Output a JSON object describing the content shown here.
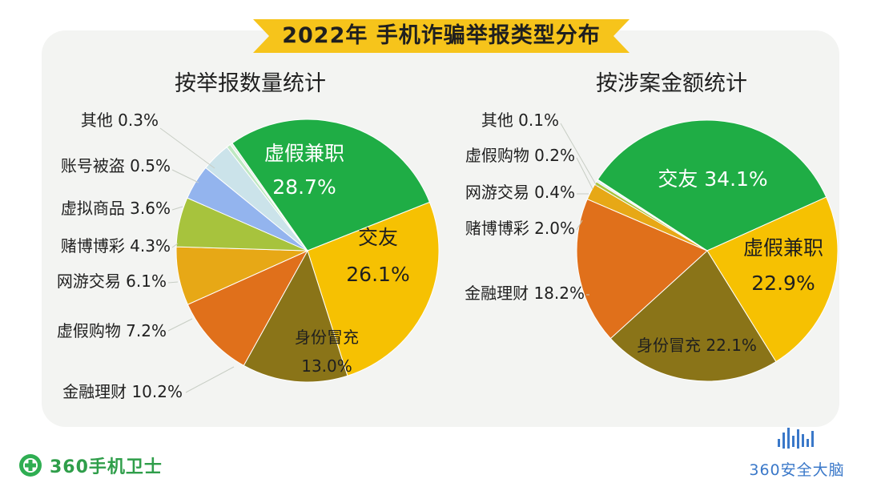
{
  "title": "2022年 手机诈骗举报类型分布",
  "colors": {
    "banner": "#f6c41b",
    "panel": "#f3f4f2",
    "green": "#1fad45",
    "yellow": "#f6c102",
    "olive": "#8a7418",
    "orange": "#e0701b",
    "gold": "#e7a816",
    "lime": "#a7c33d",
    "lightblue": "#93b4ee",
    "pale": "#cbe3ea",
    "mint": "#bfe8c2"
  },
  "chart_data": [
    {
      "type": "pie",
      "title": "按举报数量统计",
      "slices": [
        {
          "label": "虚假兼职",
          "value": 28.7,
          "color": "#1fad45"
        },
        {
          "label": "交友",
          "value": 26.1,
          "color": "#f6c102"
        },
        {
          "label": "身份冒充",
          "value": 13.0,
          "color": "#8a7418"
        },
        {
          "label": "金融理财",
          "value": 10.2,
          "color": "#e0701b"
        },
        {
          "label": "虚假购物",
          "value": 7.2,
          "color": "#e7a816"
        },
        {
          "label": "网游交易",
          "value": 6.1,
          "color": "#a7c33d"
        },
        {
          "label": "赌博博彩",
          "value": 4.3,
          "color": "#93b4ee"
        },
        {
          "label": "虚拟商品",
          "value": 3.6,
          "color": "#cbe3ea"
        },
        {
          "label": "账号被盗",
          "value": 0.5,
          "color": "#bfe8c2"
        },
        {
          "label": "其他",
          "value": 0.3,
          "color": "#e8efe6"
        }
      ],
      "labels": {
        "inside": [
          {
            "name": "虚假兼职",
            "pct": "28.7%"
          },
          {
            "name": "交友",
            "pct": "26.1%"
          },
          {
            "name": "身份冒充",
            "pct": "13.0%"
          }
        ],
        "outside": [
          "其他 0.3%",
          "账号被盗 0.5%",
          "虚拟商品 3.6%",
          "赌博博彩 4.3%",
          "网游交易 6.1%",
          "虚假购物 7.2%",
          "金融理财 10.2%"
        ]
      }
    },
    {
      "type": "pie",
      "title": "按涉案金额统计",
      "slices": [
        {
          "label": "交友",
          "value": 34.1,
          "color": "#1fad45"
        },
        {
          "label": "虚假兼职",
          "value": 22.9,
          "color": "#f6c102"
        },
        {
          "label": "身份冒充",
          "value": 22.1,
          "color": "#8a7418"
        },
        {
          "label": "金融理财",
          "value": 18.2,
          "color": "#e0701b"
        },
        {
          "label": "赌博博彩",
          "value": 2.0,
          "color": "#e7a816"
        },
        {
          "label": "网游交易",
          "value": 0.4,
          "color": "#a7c33d"
        },
        {
          "label": "虚假购物",
          "value": 0.2,
          "color": "#cbe3ea"
        },
        {
          "label": "其他",
          "value": 0.1,
          "color": "#e8efe6"
        }
      ],
      "labels": {
        "inside": [
          {
            "name": "交友",
            "pct": "34.1%"
          },
          {
            "name": "虚假兼职",
            "pct": "22.9%"
          },
          {
            "name": "身份冒充",
            "pct": "22.1%"
          }
        ],
        "outside": [
          "其他 0.1%",
          "虚假购物 0.2%",
          "网游交易 0.4%",
          "赌博博彩 2.0%",
          "金融理财 18.2%"
        ]
      }
    }
  ],
  "footer": {
    "left_brand": "360手机卫士",
    "right_brand": "360安全大脑"
  }
}
